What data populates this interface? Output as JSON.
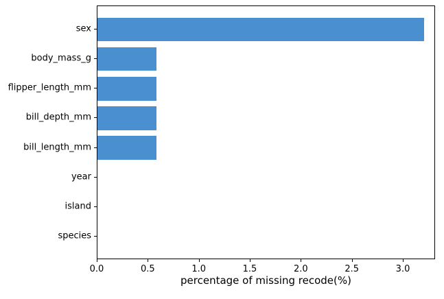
{
  "figure": {
    "background_color": "#ffffff",
    "spine_color": "#000000",
    "text_color": "#000000"
  },
  "chart_data": {
    "type": "bar",
    "orientation": "horizontal",
    "title": "",
    "xlabel": "percentage of missing recode(%)",
    "ylabel": "",
    "categories": [
      "sex",
      "body_mass_g",
      "flipper_length_mm",
      "bill_depth_mm",
      "bill_length_mm",
      "year",
      "island",
      "species"
    ],
    "values": [
      3.2,
      0.58,
      0.58,
      0.58,
      0.58,
      0,
      0,
      0
    ],
    "bar_color": "#4a90d0",
    "xlim": [
      0,
      3.316
    ],
    "x_ticks": [
      0.0,
      0.5,
      1.0,
      1.5,
      2.0,
      2.5,
      3.0
    ],
    "x_tick_labels": [
      "0.0",
      "0.5",
      "1.0",
      "1.5",
      "2.0",
      "2.5",
      "3.0"
    ],
    "grid": false,
    "legend": null
  }
}
